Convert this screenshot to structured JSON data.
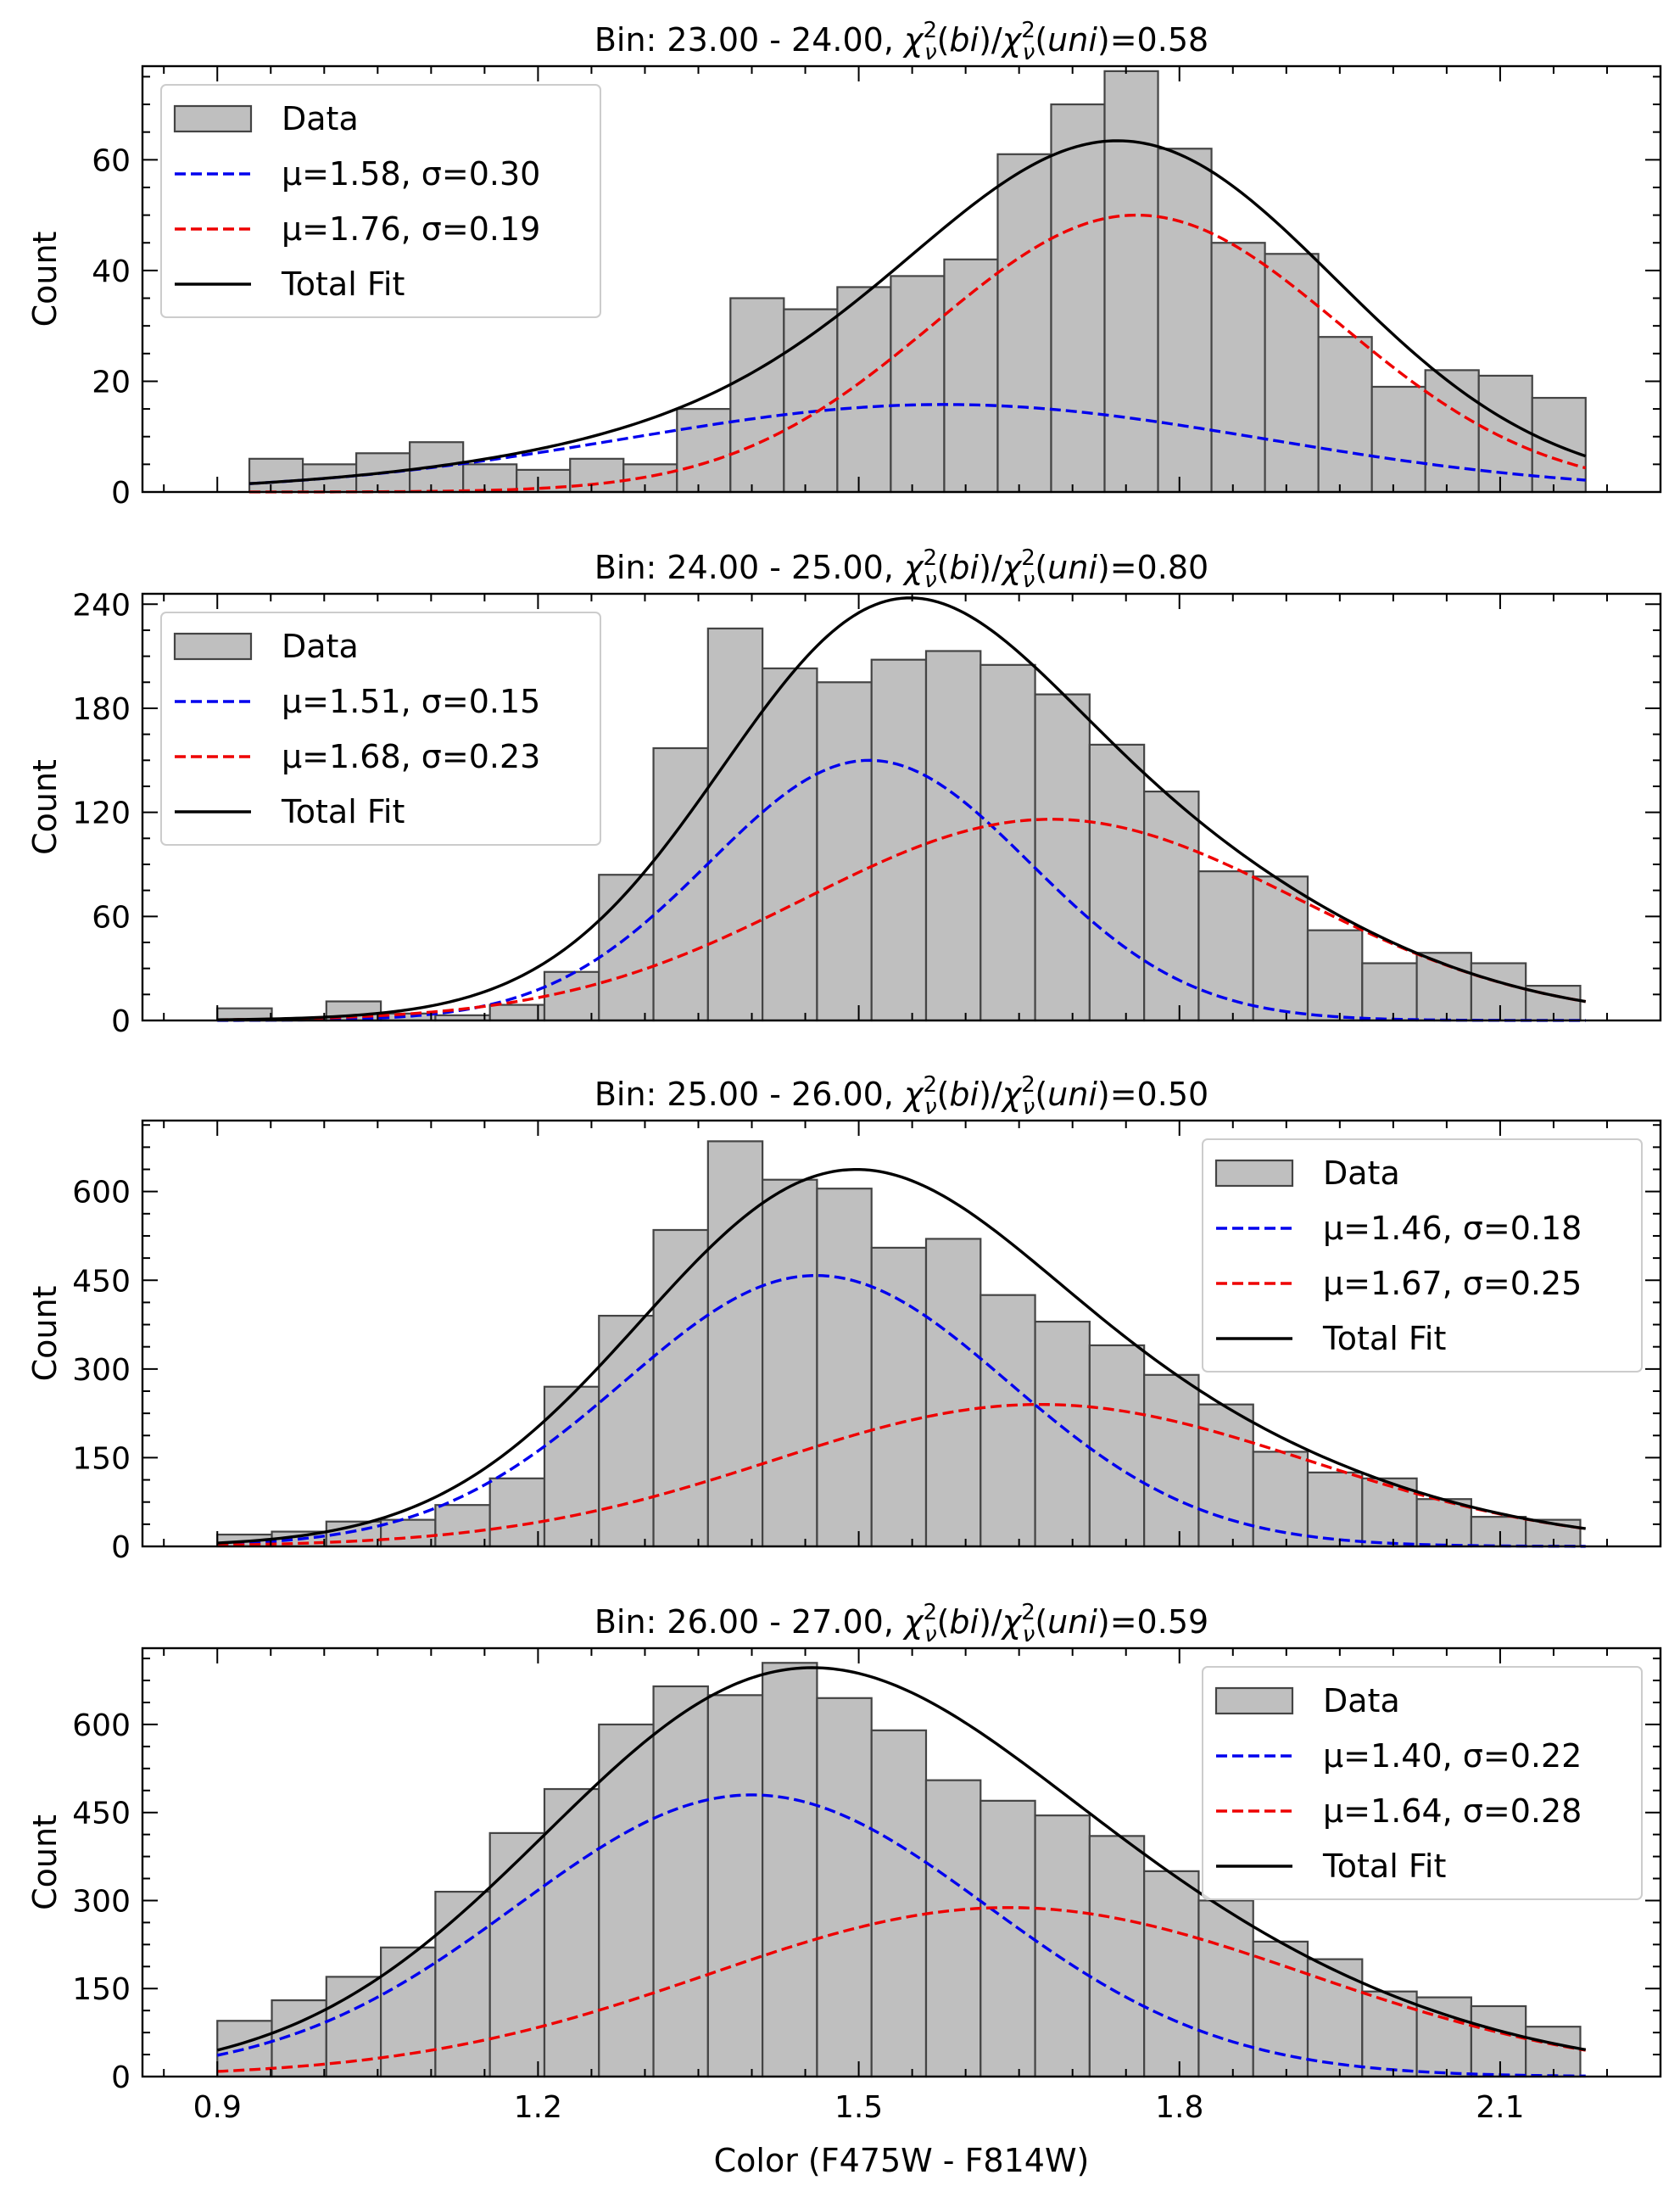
{
  "figure": {
    "xlabel": "Color (F475W - F814W)",
    "ylabel": "Count",
    "x_ticks": [
      0.9,
      1.2,
      1.5,
      1.8,
      2.1
    ],
    "x_tick_labels": [
      "0.9",
      "1.2",
      "1.5",
      "1.8",
      "2.1"
    ],
    "xlim": [
      0.83,
      2.25
    ]
  },
  "chart_data": [
    {
      "type": "bar",
      "title_prefix": "Bin: 23.00 - 24.00, ",
      "title_suffix": "=0.58",
      "ylabel": "Count",
      "ylim": [
        0,
        76.9
      ],
      "y_ticks": [
        0,
        20,
        40,
        60
      ],
      "y_tick_labels": [
        "0",
        "20",
        "40",
        "60"
      ],
      "bin_start": 0.93,
      "bin_width": 0.05,
      "values": [
        6,
        5,
        7,
        9,
        5,
        4,
        6,
        5,
        15,
        35,
        33,
        37,
        39,
        42,
        61,
        70,
        76,
        62,
        45,
        43,
        28,
        19,
        22,
        21,
        17
      ],
      "series": [
        {
          "name": "Data",
          "kind": "hist"
        },
        {
          "name": "μ=1.58, σ=0.30",
          "kind": "gauss",
          "mu": 1.58,
          "sigma": 0.3,
          "peak": 15.8,
          "color": "#0000ee"
        },
        {
          "name": "μ=1.76, σ=0.19",
          "kind": "gauss",
          "mu": 1.76,
          "sigma": 0.19,
          "peak": 50.0,
          "color": "#ee0000"
        },
        {
          "name": "Total Fit",
          "kind": "total",
          "color": "#000000"
        }
      ],
      "curve_range": [
        0.93,
        2.18
      ],
      "legend": "top-left"
    },
    {
      "type": "bar",
      "title_prefix": "Bin: 24.00 - 25.00, ",
      "title_suffix": "=0.80",
      "ylabel": "Count",
      "ylim": [
        0,
        246
      ],
      "y_ticks": [
        0,
        60,
        120,
        180,
        240
      ],
      "y_tick_labels": [
        "0",
        "60",
        "120",
        "180",
        "240"
      ],
      "bin_start": 0.9,
      "bin_width": 0.051,
      "values": [
        7,
        1,
        11,
        4,
        3,
        9,
        28,
        84,
        157,
        226,
        203,
        195,
        208,
        213,
        205,
        188,
        159,
        132,
        86,
        83,
        52,
        33,
        39,
        33,
        20
      ],
      "series": [
        {
          "name": "Data",
          "kind": "hist"
        },
        {
          "name": "μ=1.51, σ=0.15",
          "kind": "gauss",
          "mu": 1.51,
          "sigma": 0.15,
          "peak": 150,
          "color": "#0000ee"
        },
        {
          "name": "μ=1.68, σ=0.23",
          "kind": "gauss",
          "mu": 1.68,
          "sigma": 0.23,
          "peak": 116,
          "color": "#ee0000"
        },
        {
          "name": "Total Fit",
          "kind": "total",
          "color": "#000000"
        }
      ],
      "curve_range": [
        0.9,
        2.18
      ],
      "legend": "top-left"
    },
    {
      "type": "bar",
      "title_prefix": "Bin: 25.00 - 26.00, ",
      "title_suffix": "=0.50",
      "ylabel": "Count",
      "ylim": [
        0,
        720
      ],
      "y_ticks": [
        0,
        150,
        300,
        450,
        600
      ],
      "y_tick_labels": [
        "0",
        "150",
        "300",
        "450",
        "600"
      ],
      "bin_start": 0.9,
      "bin_width": 0.051,
      "values": [
        20,
        25,
        42,
        45,
        70,
        115,
        270,
        390,
        535,
        685,
        620,
        605,
        505,
        520,
        425,
        380,
        340,
        290,
        240,
        160,
        125,
        115,
        80,
        50,
        45
      ],
      "series": [
        {
          "name": "Data",
          "kind": "hist"
        },
        {
          "name": "μ=1.46, σ=0.18",
          "kind": "gauss",
          "mu": 1.46,
          "sigma": 0.18,
          "peak": 458,
          "color": "#0000ee"
        },
        {
          "name": "μ=1.67, σ=0.25",
          "kind": "gauss",
          "mu": 1.67,
          "sigma": 0.25,
          "peak": 240,
          "color": "#ee0000"
        },
        {
          "name": "Total Fit",
          "kind": "total",
          "color": "#000000"
        }
      ],
      "curve_range": [
        0.9,
        2.18
      ],
      "legend": "top-right"
    },
    {
      "type": "bar",
      "title_prefix": "Bin: 26.00 - 27.00, ",
      "title_suffix": "=0.59",
      "ylabel": "Count",
      "ylim": [
        0,
        730
      ],
      "y_ticks": [
        0,
        150,
        300,
        450,
        600
      ],
      "y_tick_labels": [
        "0",
        "150",
        "300",
        "450",
        "600"
      ],
      "bin_start": 0.9,
      "bin_width": 0.051,
      "values": [
        95,
        130,
        170,
        220,
        315,
        415,
        490,
        600,
        665,
        650,
        705,
        645,
        590,
        505,
        470,
        445,
        410,
        350,
        300,
        230,
        200,
        145,
        135,
        120,
        85
      ],
      "series": [
        {
          "name": "Data",
          "kind": "hist"
        },
        {
          "name": "μ=1.40, σ=0.22",
          "kind": "gauss",
          "mu": 1.4,
          "sigma": 0.22,
          "peak": 480,
          "color": "#0000ee"
        },
        {
          "name": "μ=1.64, σ=0.28",
          "kind": "gauss",
          "mu": 1.64,
          "sigma": 0.28,
          "peak": 288,
          "color": "#ee0000"
        },
        {
          "name": "Total Fit",
          "kind": "total",
          "color": "#000000"
        }
      ],
      "curve_range": [
        0.9,
        2.18
      ],
      "legend": "top-right"
    }
  ]
}
